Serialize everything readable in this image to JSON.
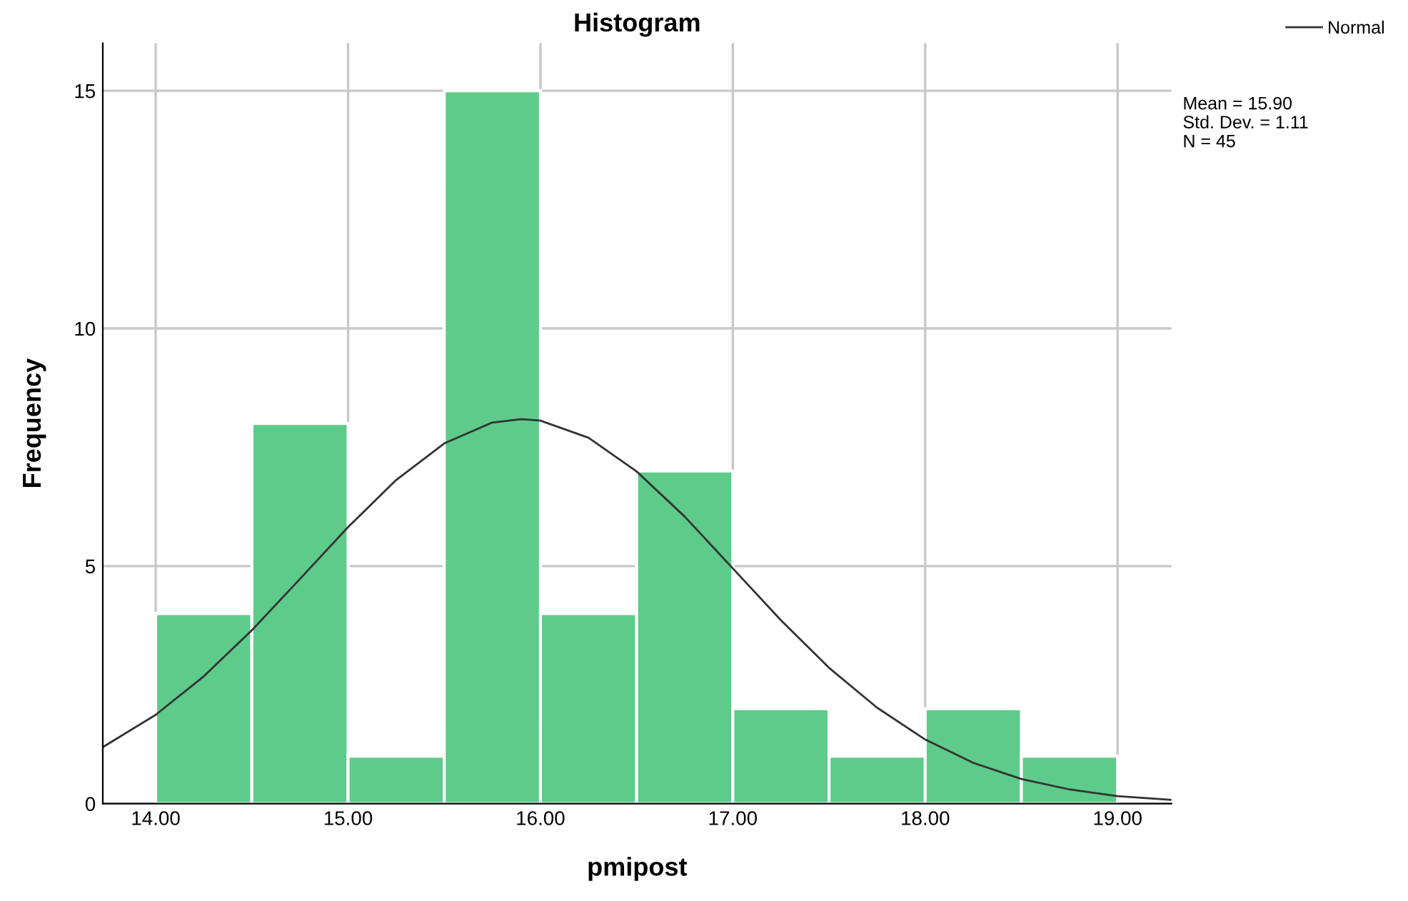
{
  "chart_data": {
    "type": "histogram",
    "title": "Histogram",
    "xlabel": "pmipost",
    "ylabel": "Frequency",
    "bins": [
      14.0,
      14.5,
      15.0,
      15.5,
      16.0,
      16.5,
      17.0,
      17.5,
      18.0,
      18.5,
      19.0
    ],
    "values": [
      4,
      8,
      1,
      15,
      4,
      7,
      2,
      1,
      2,
      1
    ],
    "color": "#5ecb8b",
    "series": [
      {
        "type": "line",
        "name": "Normal",
        "color": "#333333",
        "x": [
          13.725,
          14.0,
          14.25,
          14.5,
          14.75,
          15.0,
          15.25,
          15.5,
          15.75,
          15.9,
          16.0,
          16.25,
          16.5,
          16.75,
          17.0,
          17.25,
          17.5,
          17.75,
          18.0,
          18.25,
          18.5,
          18.75,
          19.0,
          19.28
        ],
        "values": [
          1.19,
          1.87,
          2.68,
          3.65,
          4.73,
          5.82,
          6.81,
          7.58,
          8.02,
          8.09,
          8.06,
          7.7,
          6.99,
          6.04,
          4.95,
          3.86,
          2.86,
          2.02,
          1.35,
          0.86,
          0.52,
          0.3,
          0.16,
          0.08
        ]
      }
    ],
    "xlim": [
      13.725,
      19.28
    ],
    "xticks": [
      {
        "value": 14,
        "label": "14.00"
      },
      {
        "value": 15,
        "label": "15.00"
      },
      {
        "value": 16,
        "label": "16.00"
      },
      {
        "value": 17,
        "label": "17.00"
      },
      {
        "value": 18,
        "label": "18.00"
      },
      {
        "value": 19,
        "label": "19.00"
      }
    ],
    "ylim": [
      0,
      16
    ],
    "yticks": [
      0,
      5,
      10,
      15
    ],
    "grid": true,
    "legend": "top right",
    "annotations": [
      "Mean = 15.90",
      "Std. Dev. = 1.11",
      "N = 45"
    ]
  }
}
